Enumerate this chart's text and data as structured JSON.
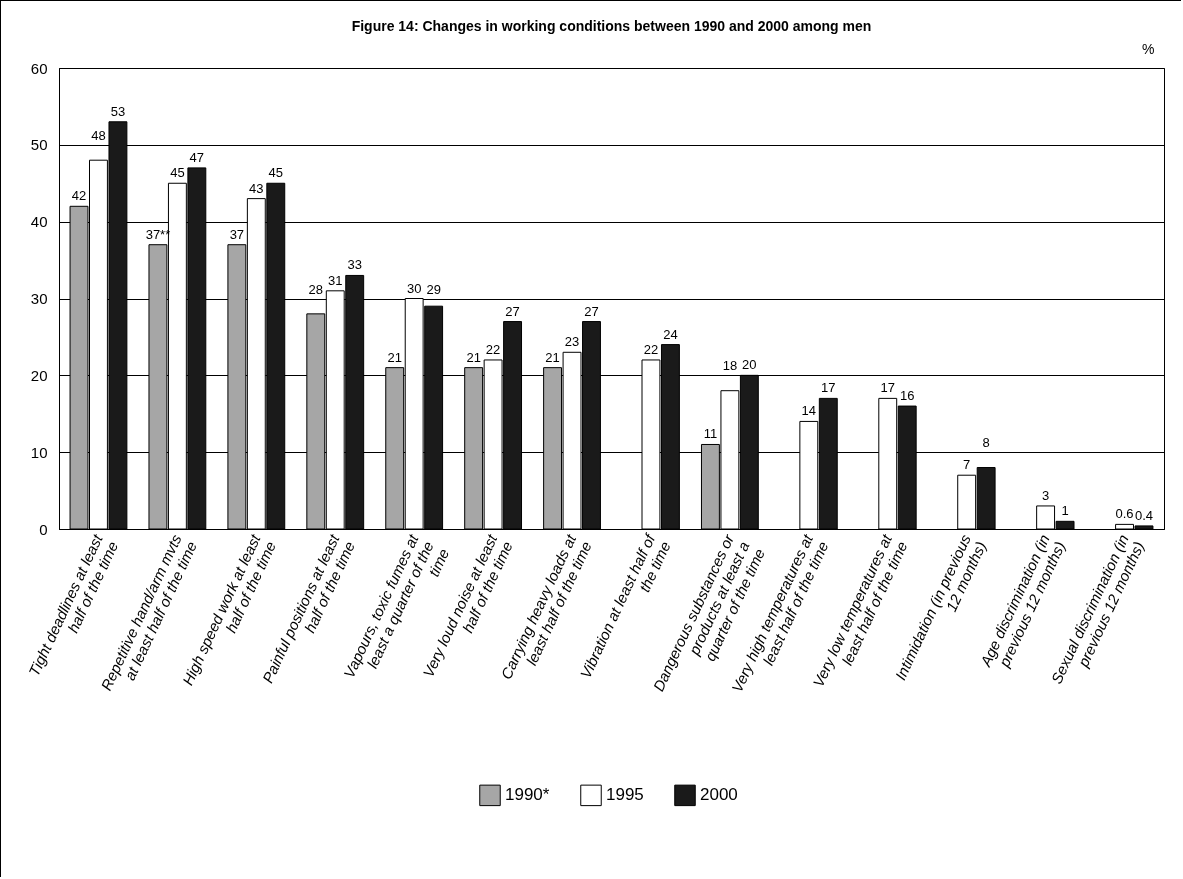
{
  "chart_data": {
    "type": "bar",
    "title": "Figure 14: Changes in working conditions between 1990 and 2000 among men",
    "ylabel": "%",
    "categories": [
      "Tight deadlines at least half of the time",
      "Repetitive hand/arm mvts at least half of the time",
      "High speed work at least half of the time",
      "Painful positions at least half of the time",
      "Vapours, toxic fumes at least a quarter of the time",
      "Very loud noise at least half of the time",
      "Carrying heavy loads at least half of the time",
      "Vibration at least half of the time",
      "Dangerous substances or products at least a quarter of the time",
      "Very high temperatures at least half of the time",
      "Very low temperatures at least half of the time",
      "Intimidation (in previous 12 months)",
      "Age discrimination (in previous 12 months)",
      "Sexual discrimination (in previous 12 months)"
    ],
    "series": [
      {
        "name": "1990*",
        "color": "#a6a6a6",
        "values": [
          42,
          37,
          37,
          28,
          21,
          21,
          21,
          null,
          11,
          null,
          null,
          null,
          null,
          null
        ],
        "value_labels": [
          "42",
          "37**",
          "37",
          "28",
          "21",
          "21",
          "21",
          null,
          "11",
          null,
          null,
          null,
          null,
          null
        ]
      },
      {
        "name": "1995",
        "color": "#ffffff",
        "values": [
          48,
          45,
          43,
          31,
          30,
          22,
          23,
          22,
          18,
          14,
          17,
          7,
          3,
          0.6
        ]
      },
      {
        "name": "2000",
        "color": "#1a1a1a",
        "values": [
          53,
          47,
          45,
          33,
          29,
          27,
          27,
          24,
          20,
          17,
          16,
          8,
          1,
          0.4
        ]
      }
    ],
    "ylim": [
      0,
      60
    ],
    "yticks": [
      0,
      10,
      20,
      30,
      40,
      50,
      60
    ],
    "grid": "y",
    "legend": "bottom",
    "data_labels": true
  }
}
